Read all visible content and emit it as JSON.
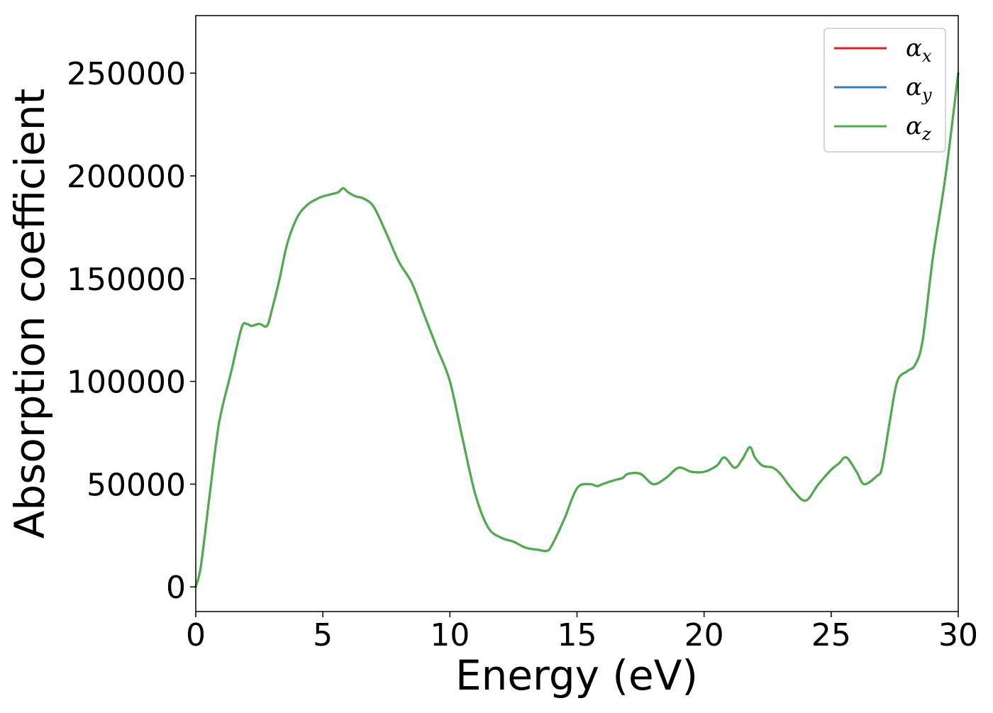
{
  "chart_data": {
    "type": "line",
    "title": "",
    "xlabel": "Energy (eV)",
    "ylabel": "Absorption coefficient",
    "xlim": [
      0,
      30
    ],
    "ylim": [
      -12000,
      278000
    ],
    "xticks": [
      0,
      5,
      10,
      15,
      20,
      25,
      30
    ],
    "xtick_labels": [
      "0",
      "5",
      "10",
      "15",
      "20",
      "25",
      "30"
    ],
    "yticks": [
      0,
      50000,
      100000,
      150000,
      200000,
      250000
    ],
    "ytick_labels": [
      "0",
      "50000",
      "100000",
      "150000",
      "200000",
      "250000"
    ],
    "grid": false,
    "legend_position": "top-right",
    "x": [
      0,
      0.2,
      0.5,
      0.8,
      1.0,
      1.4,
      1.8,
      2.0,
      2.2,
      2.5,
      2.8,
      3.0,
      3.3,
      3.6,
      4.0,
      4.4,
      4.8,
      5.0,
      5.3,
      5.6,
      5.8,
      6.0,
      6.3,
      6.6,
      7.0,
      7.5,
      8.0,
      8.5,
      9.0,
      9.5,
      10.0,
      10.5,
      11.0,
      11.5,
      12.0,
      12.5,
      13.0,
      13.5,
      13.8,
      14.0,
      14.5,
      15.0,
      15.5,
      15.8,
      16.0,
      16.5,
      16.8,
      17.0,
      17.5,
      18.0,
      18.5,
      19.0,
      19.5,
      20.0,
      20.5,
      20.8,
      21.2,
      21.5,
      21.8,
      22.0,
      22.3,
      22.7,
      23.0,
      23.5,
      24.0,
      24.5,
      25.0,
      25.3,
      25.6,
      26.0,
      26.3,
      26.8,
      27.0,
      27.3,
      27.6,
      28.0,
      28.3,
      28.6,
      29.0,
      29.5,
      30.0
    ],
    "series": [
      {
        "name": "αx",
        "color": "#e41a1c",
        "values": [
          0,
          10000,
          40000,
          70000,
          85000,
          105000,
          126000,
          128000,
          127000,
          128000,
          127000,
          135000,
          150000,
          167000,
          180000,
          186000,
          189000,
          190000,
          191000,
          192000,
          194000,
          192000,
          190000,
          189000,
          185000,
          172000,
          158000,
          148000,
          132000,
          116000,
          100000,
          72000,
          45000,
          29000,
          24000,
          22000,
          19000,
          18000,
          17500,
          20000,
          33000,
          48000,
          50000,
          49000,
          50000,
          52000,
          53000,
          55000,
          55000,
          50000,
          53000,
          58000,
          56000,
          56000,
          59000,
          63000,
          58000,
          62000,
          68000,
          63000,
          59000,
          58000,
          55000,
          47000,
          42000,
          50000,
          57000,
          60000,
          63000,
          56000,
          50000,
          54000,
          58000,
          80000,
          100000,
          105000,
          108000,
          120000,
          160000,
          200000,
          250000
        ]
      },
      {
        "name": "αy",
        "color": "#377eb8",
        "values": [
          0,
          10000,
          40000,
          70000,
          85000,
          105000,
          126000,
          128000,
          127000,
          128000,
          127000,
          135000,
          150000,
          167000,
          180000,
          186000,
          189000,
          190000,
          191000,
          192000,
          194000,
          192000,
          190000,
          189000,
          185000,
          172000,
          158000,
          148000,
          132000,
          116000,
          100000,
          72000,
          45000,
          29000,
          24000,
          22000,
          19000,
          18000,
          17500,
          20000,
          33000,
          48000,
          50000,
          49000,
          50000,
          52000,
          53000,
          55000,
          55000,
          50000,
          53000,
          58000,
          56000,
          56000,
          59000,
          63000,
          58000,
          62000,
          68000,
          63000,
          59000,
          58000,
          55000,
          47000,
          42000,
          50000,
          57000,
          60000,
          63000,
          56000,
          50000,
          54000,
          58000,
          80000,
          100000,
          105000,
          108000,
          120000,
          160000,
          200000,
          250000
        ]
      },
      {
        "name": "αz",
        "color": "#4daf4a",
        "values": [
          0,
          10000,
          40000,
          70000,
          85000,
          105000,
          126000,
          128000,
          127000,
          128000,
          127000,
          135000,
          150000,
          167000,
          180000,
          186000,
          189000,
          190000,
          191000,
          192000,
          194000,
          192000,
          190000,
          189000,
          185000,
          172000,
          158000,
          148000,
          132000,
          116000,
          100000,
          72000,
          45000,
          29000,
          24000,
          22000,
          19000,
          18000,
          17500,
          20000,
          33000,
          48000,
          50000,
          49000,
          50000,
          52000,
          53000,
          55000,
          55000,
          50000,
          53000,
          58000,
          56000,
          56000,
          59000,
          63000,
          58000,
          62000,
          68000,
          63000,
          59000,
          58000,
          55000,
          47000,
          42000,
          50000,
          57000,
          60000,
          63000,
          56000,
          50000,
          54000,
          58000,
          80000,
          100000,
          105000,
          108000,
          120000,
          160000,
          200000,
          250000
        ]
      }
    ],
    "legend": [
      {
        "symbol": "α",
        "sub": "x"
      },
      {
        "symbol": "α",
        "sub": "y"
      },
      {
        "symbol": "α",
        "sub": "z"
      }
    ]
  }
}
